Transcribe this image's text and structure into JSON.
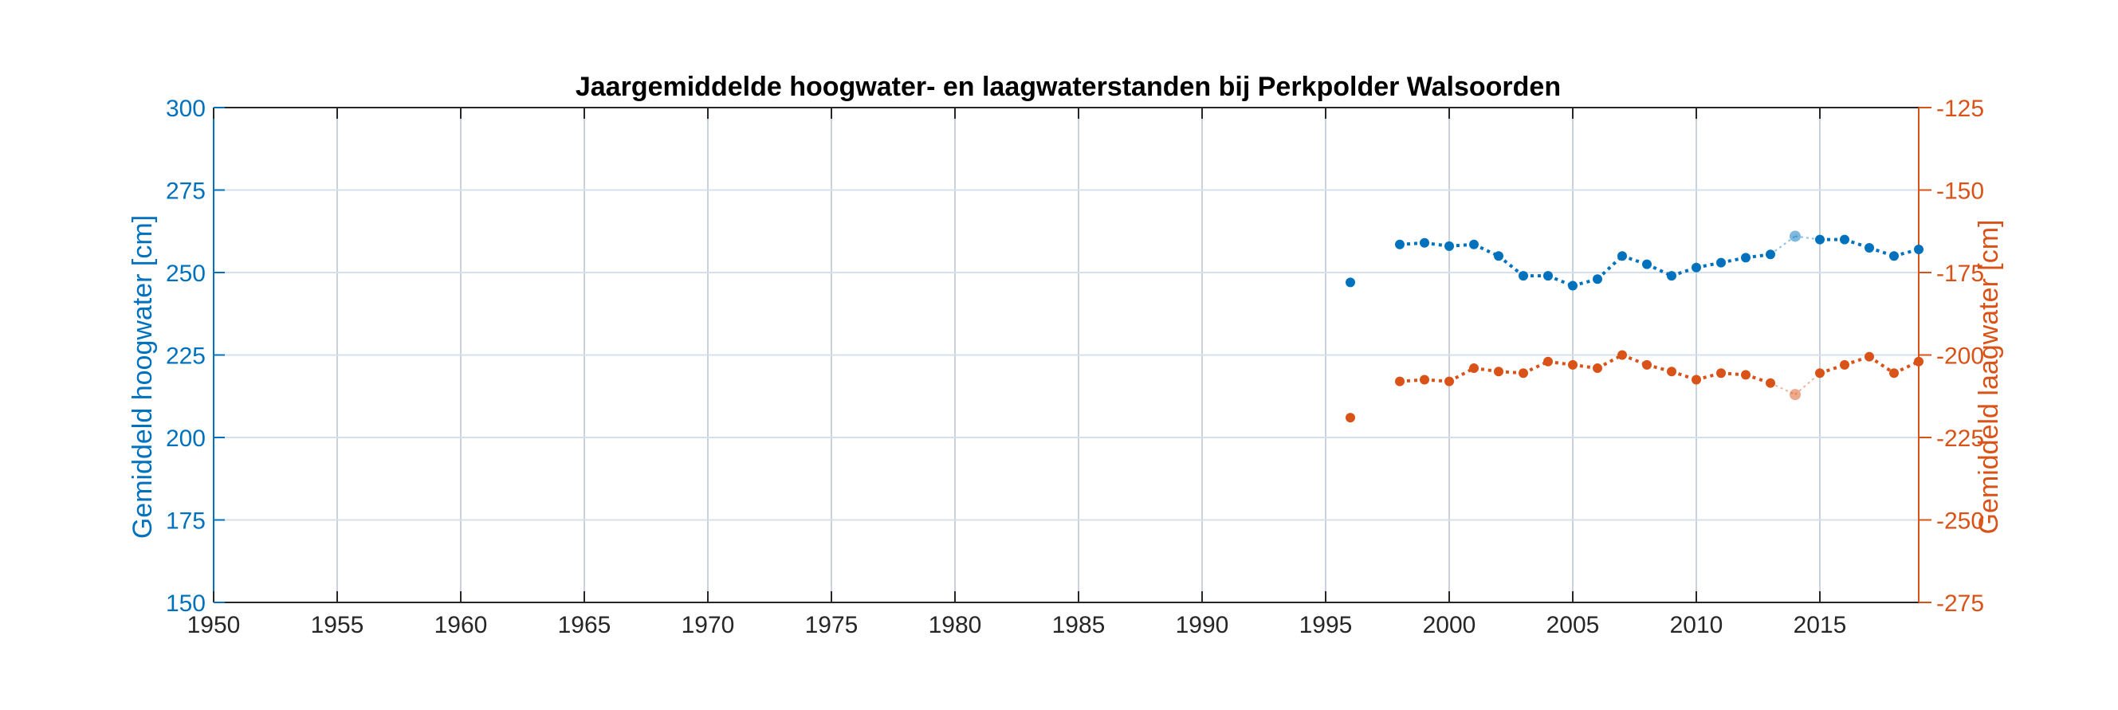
{
  "chart_data": {
    "type": "line",
    "title": "Jaargemiddelde hoogwater- en laagwaterstanden bij Perkpolder Walsoorden",
    "xlabel": "",
    "xlim": [
      1950,
      2019
    ],
    "xticks": [
      1950,
      1955,
      1960,
      1965,
      1970,
      1975,
      1980,
      1985,
      1990,
      1995,
      2000,
      2005,
      2010,
      2015
    ],
    "grid": true,
    "axes": {
      "left": {
        "label": "Gemiddeld hoogwater [cm]",
        "ylim": [
          150,
          300
        ],
        "yticks": [
          150,
          175,
          200,
          225,
          250,
          275,
          300
        ],
        "color": "#0072BD"
      },
      "right": {
        "label": "Gemiddeld laagwater [cm]",
        "ylim": [
          -275,
          -125
        ],
        "yticks": [
          -275,
          -250,
          -225,
          -200,
          -175,
          -150,
          -125
        ],
        "color": "#D95319"
      }
    },
    "series": [
      {
        "axis": "left",
        "color": "#0072BD",
        "x": [
          1996,
          1998,
          1999,
          2000,
          2001,
          2002,
          2003,
          2004,
          2005,
          2006,
          2007,
          2008,
          2009,
          2010,
          2011,
          2012,
          2013,
          2014,
          2015,
          2016,
          2017,
          2018,
          2019
        ],
        "values": [
          247,
          258.5,
          259,
          258,
          258.5,
          255,
          249,
          249,
          246,
          248,
          255,
          252.5,
          249,
          251.5,
          253,
          254.5,
          255.5,
          261,
          260,
          260,
          257.5,
          255,
          257
        ],
        "highlighted_x": [
          2014
        ]
      },
      {
        "axis": "right",
        "color": "#D95319",
        "x": [
          1996,
          1998,
          1999,
          2000,
          2001,
          2002,
          2003,
          2004,
          2005,
          2006,
          2007,
          2008,
          2009,
          2010,
          2011,
          2012,
          2013,
          2014,
          2015,
          2016,
          2017,
          2018,
          2019
        ],
        "values": [
          -219,
          -208,
          -207.5,
          -208,
          -204,
          -205,
          -205.5,
          -202,
          -203,
          -204,
          -200,
          -203,
          -205,
          -207.5,
          -205.5,
          -206,
          -208.5,
          -212,
          -205.5,
          -203,
          -200.5,
          -205.5,
          -202
        ],
        "highlighted_x": [
          2014
        ]
      }
    ]
  }
}
